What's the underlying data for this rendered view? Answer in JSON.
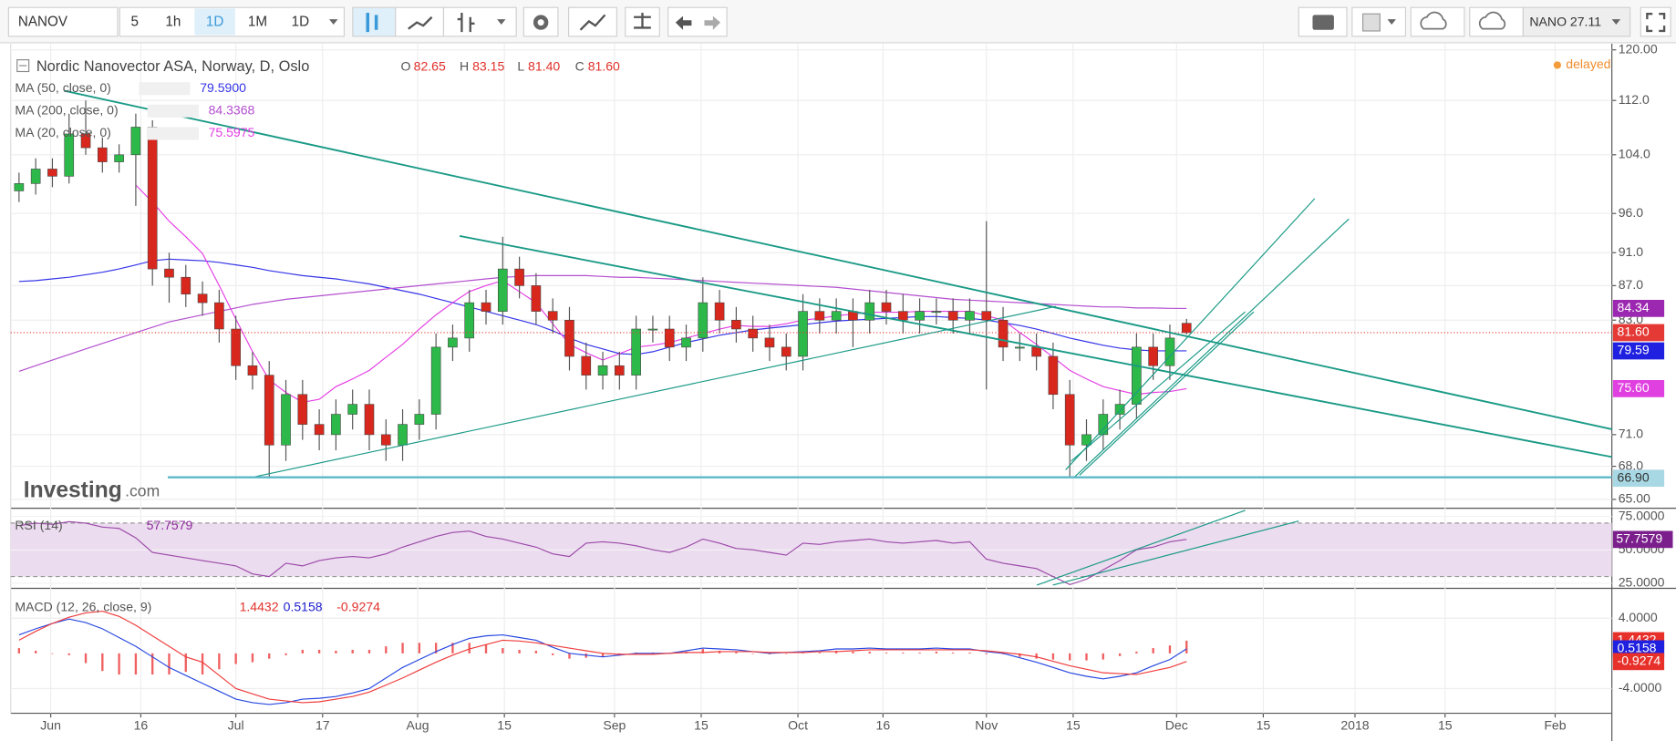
{
  "toolbar": {
    "symbol": "NANOV",
    "intervals": [
      "5",
      "1h",
      "1D",
      "1M",
      "1D"
    ],
    "quote": "NANO 27.11"
  },
  "chart_data": [
    {
      "type": "candlestick",
      "title": "Nordic Nanovector ASA, Norway, D, Oslo",
      "ohlc_header": [
        {
          "key": "O",
          "text": "82.65"
        },
        {
          "key": "H",
          "text": "83.15"
        },
        {
          "key": "L",
          "text": "81.40"
        },
        {
          "key": "C",
          "text": "81.60"
        }
      ],
      "status": "delayed",
      "watermark": [
        "Investing",
        ".com"
      ],
      "up_color": "#2db84a",
      "down_color": "#d8281e",
      "log_scale": true,
      "grid": true,
      "ylim": [
        64.5,
        121
      ],
      "yticks": [
        {
          "value": 120,
          "label": "120.00"
        },
        {
          "value": 112,
          "label": "112.0"
        },
        {
          "value": 104,
          "label": "104.0"
        },
        {
          "value": 96,
          "label": "96.0"
        },
        {
          "value": 91,
          "label": "91.0"
        },
        {
          "value": 87,
          "label": "87.0"
        },
        {
          "value": 83,
          "label": "83.0"
        },
        {
          "value": 71,
          "label": "71.0"
        },
        {
          "value": 68,
          "label": "68.0"
        },
        {
          "value": 65,
          "label": "65.00"
        }
      ],
      "xlim": [
        0,
        96
      ],
      "xticks": [
        {
          "value": 2.4,
          "label": "Jun"
        },
        {
          "value": 7.8,
          "label": "16"
        },
        {
          "value": 13.5,
          "label": "Jul"
        },
        {
          "value": 18.7,
          "label": "17"
        },
        {
          "value": 24.4,
          "label": "Aug"
        },
        {
          "value": 29.6,
          "label": "15"
        },
        {
          "value": 36.2,
          "label": "Sep"
        },
        {
          "value": 41.4,
          "label": "15"
        },
        {
          "value": 47.2,
          "label": "Oct"
        },
        {
          "value": 52.3,
          "label": "16"
        },
        {
          "value": 58.5,
          "label": "Nov"
        },
        {
          "value": 63.7,
          "label": "15"
        },
        {
          "value": 69.9,
          "label": "Dec"
        },
        {
          "value": 75.1,
          "label": "15"
        },
        {
          "value": 80.6,
          "label": "2018"
        },
        {
          "value": 86,
          "label": "15"
        },
        {
          "value": 92.6,
          "label": "Feb"
        }
      ],
      "candles": {
        "open": [
          99,
          100,
          102,
          101,
          107,
          105,
          103,
          104,
          108,
          89,
          88,
          86,
          85,
          82,
          78,
          77,
          70,
          75,
          72,
          71,
          73,
          74,
          71,
          70,
          72,
          73,
          80,
          81,
          85,
          84,
          89,
          87,
          84,
          83,
          79,
          77,
          78,
          77,
          82,
          82,
          80,
          81,
          85,
          83,
          82,
          81,
          80,
          79,
          84,
          83,
          84,
          83,
          85,
          84,
          83,
          84,
          84,
          83,
          84,
          83,
          80,
          80,
          79,
          75,
          70,
          71,
          73,
          74,
          80,
          78,
          82.65
        ],
        "high": [
          101.5,
          103.5,
          103.5,
          110,
          112,
          106.5,
          105.5,
          110,
          109,
          91,
          89.5,
          87.5,
          86.5,
          83.5,
          79.5,
          78.5,
          76.5,
          76.5,
          73.5,
          74.5,
          75.5,
          75.5,
          72.5,
          73.5,
          74.5,
          81.5,
          82.5,
          86.5,
          86.5,
          93,
          90.5,
          88.5,
          85.5,
          84.5,
          80.5,
          79.5,
          79.5,
          83.5,
          83.5,
          83.5,
          82.5,
          88,
          86.5,
          84.5,
          83.5,
          82.5,
          81.5,
          86,
          85.5,
          85.5,
          85.5,
          86.5,
          86.5,
          86,
          85.5,
          85.5,
          85.5,
          85.5,
          95,
          84.5,
          81.5,
          81.5,
          80.5,
          76.5,
          72.5,
          74.5,
          75.5,
          81.5,
          81.5,
          82.5,
          83.15
        ],
        "low": [
          97.5,
          98.5,
          99.5,
          100,
          104,
          101.5,
          101.5,
          97,
          87,
          85,
          84.5,
          83.5,
          80.5,
          76.5,
          75.5,
          66.9,
          68.5,
          70.5,
          69.5,
          69.5,
          71.5,
          69.5,
          68.5,
          68.5,
          70.5,
          71.5,
          78.5,
          79.5,
          82.5,
          82.5,
          85.5,
          82.5,
          81.5,
          77.5,
          75.5,
          75.5,
          75.5,
          75.5,
          80.5,
          78.5,
          78.5,
          79.5,
          81.5,
          80.5,
          79.5,
          78.5,
          77.5,
          77.5,
          81.5,
          81.5,
          80,
          81.5,
          82.5,
          81.5,
          81.5,
          82.5,
          81.5,
          81.5,
          75.5,
          78.5,
          78.5,
          77.5,
          73.5,
          67,
          68.5,
          69.5,
          71.5,
          72.5,
          76.5,
          76.5,
          81.4
        ],
        "close": [
          100,
          102,
          101,
          107,
          105,
          103,
          104,
          108,
          89,
          88,
          86,
          85,
          82,
          78,
          77,
          70,
          75,
          72,
          71,
          73,
          74,
          71,
          70,
          72,
          73,
          80,
          81,
          85,
          84,
          89,
          87,
          84,
          83,
          79,
          77,
          78,
          77,
          82,
          82,
          80,
          81,
          85,
          83,
          82,
          81,
          80,
          79,
          84,
          83,
          84,
          83,
          85,
          84,
          83,
          84,
          84,
          83,
          84,
          83,
          80,
          80,
          79,
          75,
          70,
          71,
          73,
          74,
          80,
          78,
          81,
          81.6
        ]
      },
      "series": [
        {
          "name": "MA (50, close, 0)",
          "last_label": "79.5900",
          "color": "#3434e8",
          "values": [
            87.5,
            87.6,
            87.8,
            88,
            88.3,
            88.6,
            89,
            89.5,
            90,
            90.2,
            90.1,
            90,
            89.8,
            89.5,
            89.2,
            88.8,
            88.5,
            88.2,
            88,
            87.8,
            87.5,
            87.2,
            86.8,
            86.4,
            86,
            85.5,
            85,
            84.5,
            84,
            83.5,
            83,
            82.5,
            81.8,
            81,
            80.3,
            79.8,
            79.3,
            79.2,
            79.5,
            80,
            80.5,
            80.9,
            81.3,
            81.6,
            81.9,
            82.1,
            82.3,
            82.5,
            82.7,
            82.9,
            83,
            83.1,
            83.2,
            83.3,
            83.4,
            83.4,
            83.3,
            83.2,
            83,
            82.7,
            82.4,
            82,
            81.5,
            81,
            80.6,
            80.2,
            79.9,
            79.7,
            79.6,
            79.6,
            79.59
          ]
        },
        {
          "name": "MA (200, close, 0)",
          "last_label": "84.3368",
          "color": "#b44fd0",
          "values": [
            77.4,
            78,
            78.6,
            79.2,
            79.8,
            80.4,
            81,
            81.6,
            82.2,
            82.8,
            83.2,
            83.6,
            84,
            84.4,
            84.8,
            85.1,
            85.4,
            85.6,
            85.8,
            86,
            86.2,
            86.4,
            86.6,
            86.8,
            87,
            87.2,
            87.4,
            87.6,
            87.8,
            88,
            88.1,
            88.2,
            88.2,
            88.2,
            88.2,
            88.1,
            88,
            88,
            87.9,
            87.8,
            87.7,
            87.6,
            87.5,
            87.4,
            87.3,
            87.2,
            87.1,
            87,
            86.9,
            86.8,
            86.6,
            86.4,
            86.2,
            86,
            85.8,
            85.6,
            85.4,
            85.3,
            85.2,
            85.1,
            85,
            84.9,
            84.8,
            84.7,
            84.6,
            84.5,
            84.5,
            84.4,
            84.4,
            84.35,
            84.3368
          ]
        },
        {
          "name": "MA (20, close, 0)",
          "last_label": "75.5975",
          "color": "#e43ee4",
          "values": [
            null,
            null,
            null,
            null,
            null,
            null,
            null,
            99.8,
            97.5,
            95,
            93,
            90.9,
            87,
            83.1,
            79.5,
            76.5,
            75.2,
            74.2,
            74.5,
            75.8,
            76.6,
            77.5,
            78.9,
            80.3,
            82,
            83.6,
            85,
            86.3,
            87,
            87.6,
            86.3,
            85,
            82.6,
            80.3,
            79.4,
            78.6,
            79.3,
            80,
            80.2,
            80.5,
            81,
            81.5,
            82,
            82.4,
            82.3,
            82.3,
            82.6,
            83,
            83.2,
            83.5,
            83.7,
            83.9,
            83.9,
            83.9,
            84,
            84,
            84,
            84,
            83.5,
            83,
            81.6,
            80.3,
            78.9,
            77.5,
            76.6,
            75.8,
            75.4,
            75,
            75.2,
            75.3,
            75.5975
          ]
        }
      ],
      "price_labels": [
        {
          "value": 84.34,
          "color": "#9c27b0"
        },
        {
          "value": 81.6,
          "label": "81.60",
          "color": "#e53935",
          "dotted": true
        },
        {
          "value": 79.59,
          "color": "#2020e0"
        },
        {
          "value": 75.6,
          "label": "75.60",
          "color": "#e040e0"
        },
        {
          "value": 66.9,
          "label": "66.90",
          "color": "#a8d8e4",
          "text_color": "#333"
        }
      ]
    },
    {
      "type": "line",
      "grid": true,
      "ylim": [
        22,
        79.5
      ],
      "yticks": [
        {
          "value": 75,
          "label": "75.0000"
        },
        {
          "value": 50,
          "label": "50.0000"
        },
        {
          "value": 25,
          "label": "25.0000"
        }
      ],
      "band": [
        30,
        70
      ],
      "band_color": "#ecdcef",
      "series": [
        {
          "name": "RSI (14)",
          "color": "#9b49a8",
          "values": [
            68,
            70,
            69,
            71,
            70,
            67,
            66,
            59,
            48,
            46,
            44,
            42,
            40,
            38,
            32,
            30,
            40,
            38,
            42,
            44,
            45,
            44,
            47,
            52,
            56,
            60,
            63,
            64,
            60,
            58,
            55,
            52,
            47,
            45,
            55,
            56,
            55,
            53,
            50,
            48,
            52,
            58,
            55,
            51,
            50,
            48,
            46,
            55,
            54,
            56,
            57,
            58,
            56,
            55,
            56,
            57,
            55,
            56,
            43,
            40,
            38,
            36,
            30,
            24,
            28,
            35,
            42,
            50,
            52,
            56,
            57.7579
          ]
        }
      ]
    },
    {
      "type": "macd",
      "title": "MACD (12, 26, close, 9)",
      "grid": true,
      "ylim": [
        -6.8,
        7.15
      ],
      "yticks": [
        {
          "value": 4,
          "label": "4.0000"
        },
        {
          "value": -4,
          "label": "-4.0000"
        }
      ],
      "histogram": {
        "color": "#f06060",
        "values": [
          0.6,
          0.3,
          0,
          -0.2,
          -1.1,
          -2,
          -2.4,
          -2.4,
          -2.4,
          -2.4,
          -2.1,
          -2.4,
          -1.8,
          -1.2,
          -1,
          -0.6,
          -0.2,
          0.4,
          0.4,
          0.3,
          0.4,
          0.4,
          0.8,
          1.2,
          1.2,
          1.2,
          1.2,
          1.2,
          1,
          0.6,
          0.4,
          0.3,
          -0.2,
          -0.6,
          -0.5,
          -0.4,
          -0.1,
          0.1,
          0.1,
          0,
          0.2,
          0.5,
          0.3,
          0.2,
          0,
          -0.1,
          0,
          0.1,
          0.1,
          0.3,
          0.2,
          0.2,
          0.1,
          0.1,
          0.1,
          0.2,
          0.1,
          0.1,
          -0.1,
          -0.1,
          -0.4,
          -0.6,
          -0.7,
          -0.8,
          -0.8,
          -0.7,
          -0.3,
          0.2,
          0.6,
          0.9,
          1.4432
        ]
      },
      "macd": {
        "color": "#2848e0",
        "values": [
          2.1,
          2.8,
          3.4,
          3.9,
          3.5,
          2.8,
          1.8,
          0.8,
          -0.4,
          -1.6,
          -2.5,
          -3.4,
          -4.3,
          -5.2,
          -5.6,
          -5.8,
          -5.6,
          -5.2,
          -5.1,
          -4.9,
          -4.5,
          -4,
          -2.8,
          -1.6,
          -0.7,
          0.2,
          1,
          1.7,
          2,
          2.1,
          1.8,
          1.5,
          0.7,
          0,
          -0.2,
          -0.4,
          -0.2,
          0,
          0,
          0,
          0.3,
          0.6,
          0.5,
          0.4,
          0.2,
          0,
          0.1,
          0.2,
          0.3,
          0.5,
          0.5,
          0.6,
          0.5,
          0.5,
          0.5,
          0.6,
          0.5,
          0.5,
          0.2,
          0,
          -0.5,
          -1,
          -1.6,
          -2.2,
          -2.6,
          -2.9,
          -2.6,
          -2.2,
          -1.4,
          -0.7,
          0.5158
        ]
      },
      "signal": {
        "color": "#f03c3c",
        "values": [
          1.5,
          2.5,
          3.4,
          4.1,
          4.6,
          4.8,
          4.2,
          3.2,
          2,
          0.8,
          -0.4,
          -1,
          -2.5,
          -4,
          -4.6,
          -5.2,
          -5.4,
          -5.6,
          -5.5,
          -5.2,
          -4.9,
          -4.4,
          -3.6,
          -2.8,
          -1.9,
          -1,
          -0.2,
          0.5,
          1,
          1.5,
          1.4,
          1.2,
          0.9,
          0.6,
          0.3,
          0,
          -0.1,
          -0.1,
          -0.1,
          0,
          0.1,
          0.1,
          0.2,
          0.2,
          0.2,
          0.1,
          0.1,
          0.1,
          0.2,
          0.2,
          0.3,
          0.4,
          0.4,
          0.4,
          0.4,
          0.4,
          0.4,
          0.4,
          0.3,
          0.1,
          -0.1,
          -0.4,
          -0.9,
          -1.4,
          -1.8,
          -2.2,
          -2.3,
          -2.4,
          -2,
          -1.6,
          -0.9274
        ]
      }
    }
  ]
}
